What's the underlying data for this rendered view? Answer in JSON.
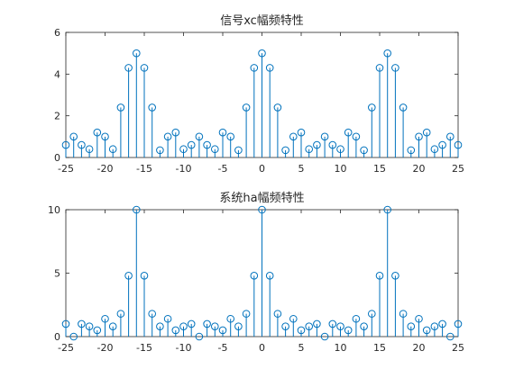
{
  "chart_data": [
    {
      "type": "stem",
      "title": "信号xc幅频特性",
      "xlabel": "",
      "ylabel": "",
      "xlim": [
        -25,
        25
      ],
      "ylim": [
        0,
        6
      ],
      "xticks": [
        -25,
        -20,
        -15,
        -10,
        -5,
        0,
        5,
        10,
        15,
        20,
        25
      ],
      "yticks": [
        0,
        2,
        4,
        6
      ],
      "grid": false,
      "series": [
        {
          "color": "#0072BD",
          "x": [
            -25,
            -24,
            -23,
            -22,
            -21,
            -20,
            -19,
            -18,
            -17,
            -16,
            -15,
            -14,
            -13,
            -12,
            -11,
            -10,
            -9,
            -8,
            -7,
            -6,
            -5,
            -4,
            -3,
            -2,
            -1,
            0,
            1,
            2,
            3,
            4,
            5,
            6,
            7,
            8,
            9,
            10,
            11,
            12,
            13,
            14,
            15,
            16,
            17,
            18,
            19,
            20,
            21,
            22,
            23,
            24,
            25
          ],
          "values": [
            0.6,
            1.0,
            0.6,
            0.4,
            1.2,
            1.0,
            0.4,
            2.4,
            4.3,
            5.0,
            4.3,
            2.4,
            0.35,
            1.0,
            1.2,
            0.4,
            0.6,
            1.0,
            0.6,
            0.4,
            1.2,
            1.0,
            0.35,
            2.4,
            4.3,
            5.0,
            4.3,
            2.4,
            0.35,
            1.0,
            1.2,
            0.4,
            0.6,
            1.0,
            0.6,
            0.4,
            1.2,
            1.0,
            0.35,
            2.4,
            4.3,
            5.0,
            4.3,
            2.4,
            0.35,
            1.0,
            1.2,
            0.4,
            0.6,
            1.0,
            0.6
          ]
        }
      ]
    },
    {
      "type": "stem",
      "title": "系统ha幅频特性",
      "xlabel": "",
      "ylabel": "",
      "xlim": [
        -25,
        25
      ],
      "ylim": [
        0,
        10
      ],
      "xticks": [
        -25,
        -20,
        -15,
        -10,
        -5,
        0,
        5,
        10,
        15,
        20,
        25
      ],
      "yticks": [
        0,
        5,
        10
      ],
      "grid": false,
      "series": [
        {
          "color": "#0072BD",
          "x": [
            -25,
            -24,
            -23,
            -22,
            -21,
            -20,
            -19,
            -18,
            -17,
            -16,
            -15,
            -14,
            -13,
            -12,
            -11,
            -10,
            -9,
            -8,
            -7,
            -6,
            -5,
            -4,
            -3,
            -2,
            -1,
            0,
            1,
            2,
            3,
            4,
            5,
            6,
            7,
            8,
            9,
            10,
            11,
            12,
            13,
            14,
            15,
            16,
            17,
            18,
            19,
            20,
            21,
            22,
            23,
            24,
            25
          ],
          "values": [
            1.0,
            0.0,
            1.0,
            0.8,
            0.5,
            1.4,
            0.8,
            1.8,
            4.8,
            10.0,
            4.8,
            1.8,
            0.8,
            1.4,
            0.5,
            0.8,
            1.0,
            0.0,
            1.0,
            0.8,
            0.5,
            1.4,
            0.8,
            1.8,
            4.8,
            10.0,
            4.8,
            1.8,
            0.8,
            1.4,
            0.5,
            0.8,
            1.0,
            0.0,
            1.0,
            0.8,
            0.5,
            1.4,
            0.8,
            1.8,
            4.8,
            10.0,
            4.8,
            1.8,
            0.8,
            1.4,
            0.5,
            0.8,
            1.0,
            0.0,
            1.0
          ]
        }
      ]
    }
  ]
}
